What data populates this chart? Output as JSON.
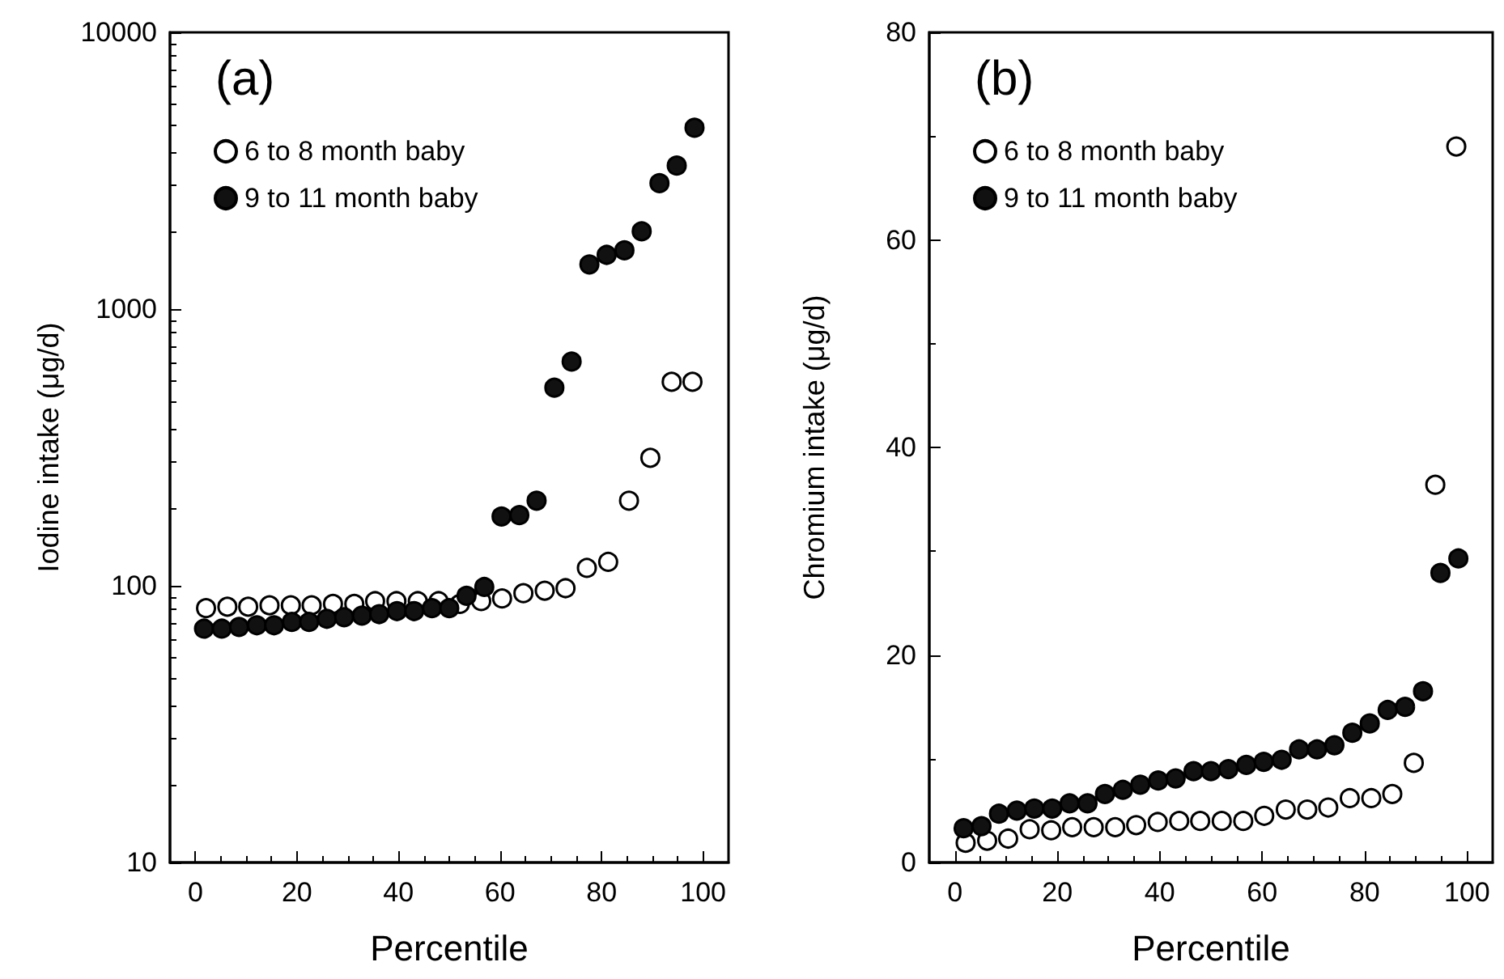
{
  "chart_data": [
    {
      "type": "scatter",
      "annotations": [
        "(a)"
      ],
      "xlabel": "Percentile",
      "ylabel": "Iodine intake (μg/d)",
      "log": "y",
      "xlim": [
        -5,
        105
      ],
      "xticks": [
        0,
        20,
        40,
        60,
        80,
        100
      ],
      "ylim": [
        10,
        10000
      ],
      "yticks": [
        10,
        100,
        1000,
        10000
      ],
      "legend": "top left",
      "marker": "circle",
      "grid": false,
      "series": [
        {
          "name": "6 to 8 month baby",
          "color": "#ffffff",
          "x": [
            2.1,
            6.3,
            10.4,
            14.6,
            18.8,
            22.9,
            27.1,
            31.3,
            35.4,
            39.6,
            43.8,
            47.9,
            52.1,
            56.3,
            60.4,
            64.6,
            68.8,
            72.9,
            77.1,
            81.3,
            85.4,
            89.6,
            93.8,
            97.9
          ],
          "values": [
            83,
            84,
            84,
            85,
            85,
            85,
            86,
            86,
            88,
            88,
            88,
            88,
            86,
            88,
            90,
            94,
            96,
            98,
            116,
            122,
            203,
            290,
            546,
            546
          ]
        },
        {
          "name": "9 to 11 month baby",
          "color": "#111111",
          "x": [
            1.7,
            5.2,
            8.6,
            12.1,
            15.5,
            19.0,
            22.4,
            25.9,
            29.3,
            32.8,
            36.2,
            39.7,
            43.1,
            46.6,
            50.0,
            53.4,
            56.9,
            60.3,
            63.8,
            67.2,
            70.7,
            74.1,
            77.6,
            81.0,
            84.5,
            87.9,
            91.4,
            94.8,
            98.3
          ],
          "values": [
            70,
            70,
            71,
            72,
            72,
            74,
            74,
            76,
            77,
            78,
            79,
            81,
            81,
            83,
            83,
            92,
            99,
            178,
            180,
            203,
            520,
            646,
            1450,
            1570,
            1630,
            1910,
            2850,
            3300,
            4520
          ]
        }
      ]
    },
    {
      "type": "scatter",
      "annotations": [
        "(b)"
      ],
      "xlabel": "Percentile",
      "ylabel": "Chromium intake (μg/d)",
      "xlim": [
        -5,
        105
      ],
      "xticks": [
        0,
        20,
        40,
        60,
        80,
        100
      ],
      "ylim": [
        0,
        80
      ],
      "yticks": [
        0,
        20,
        40,
        60,
        80
      ],
      "legend": "top left",
      "marker": "circle",
      "grid": false,
      "series": [
        {
          "name": "6 to 8 month baby",
          "color": "#ffffff",
          "x": [
            2.1,
            6.3,
            10.4,
            14.6,
            18.8,
            22.9,
            27.1,
            31.3,
            35.4,
            39.6,
            43.8,
            47.9,
            52.1,
            56.3,
            60.4,
            64.6,
            68.8,
            72.9,
            77.1,
            81.3,
            85.4,
            89.6,
            93.8,
            97.9
          ],
          "values": [
            1.9,
            2.1,
            2.3,
            3.2,
            3.1,
            3.4,
            3.4,
            3.4,
            3.6,
            3.9,
            4.0,
            4.0,
            4.0,
            4.0,
            4.5,
            5.1,
            5.1,
            5.3,
            6.2,
            6.2,
            6.6,
            9.6,
            36.4,
            69.0
          ]
        },
        {
          "name": "9 to 11 month baby",
          "color": "#111111",
          "x": [
            1.7,
            5.2,
            8.6,
            12.1,
            15.5,
            19.0,
            22.4,
            25.9,
            29.3,
            32.8,
            36.2,
            39.7,
            43.1,
            46.6,
            50.0,
            53.4,
            56.9,
            60.3,
            63.8,
            67.2,
            70.7,
            74.1,
            77.6,
            81.0,
            84.5,
            87.9,
            91.4,
            94.8,
            98.3
          ],
          "values": [
            3.3,
            3.5,
            4.7,
            5.0,
            5.2,
            5.2,
            5.7,
            5.7,
            6.6,
            7.0,
            7.5,
            7.9,
            8.1,
            8.8,
            8.8,
            9.0,
            9.4,
            9.7,
            9.9,
            10.9,
            10.9,
            11.3,
            12.5,
            13.4,
            14.7,
            15.0,
            16.5,
            27.9,
            29.3
          ]
        }
      ]
    }
  ]
}
